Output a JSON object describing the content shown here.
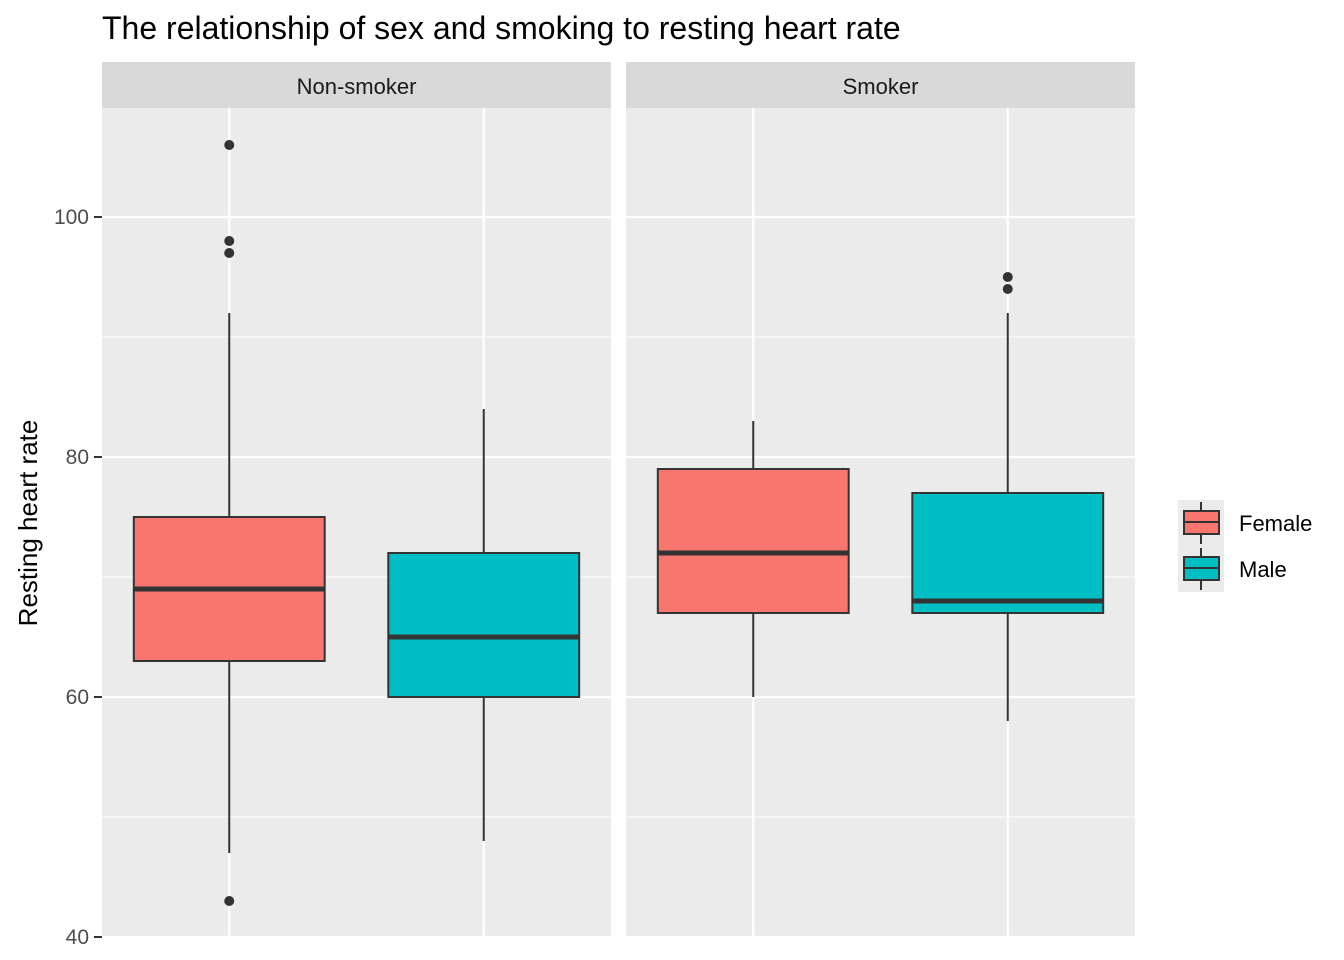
{
  "chart_data": {
    "type": "boxplot",
    "title": "The relationship of sex and smoking to resting heart rate",
    "ylabel": "Resting heart rate",
    "xlabel": "",
    "ylim": [
      40,
      110
    ],
    "y_ticks": [
      40,
      60,
      80,
      100
    ],
    "grid": true,
    "legend_position": "right",
    "panels": [
      {
        "label": "Non-smoker",
        "boxes": [
          {
            "group": "Female",
            "lower_whisker": 47,
            "q1": 63,
            "median": 69,
            "q3": 75,
            "upper_whisker": 92,
            "outliers": [
              106,
              98,
              97,
              43
            ]
          },
          {
            "group": "Male",
            "lower_whisker": 48,
            "q1": 60,
            "median": 65,
            "q3": 72,
            "upper_whisker": 84,
            "outliers": []
          }
        ]
      },
      {
        "label": "Smoker",
        "boxes": [
          {
            "group": "Female",
            "lower_whisker": 60,
            "q1": 67,
            "median": 72,
            "q3": 79,
            "upper_whisker": 83,
            "outliers": []
          },
          {
            "group": "Male",
            "lower_whisker": 58,
            "q1": 67,
            "median": 68,
            "q3": 77,
            "upper_whisker": 92,
            "outliers": [
              95,
              94
            ]
          }
        ]
      }
    ],
    "legend": [
      {
        "name": "Female",
        "color": "#F8766D"
      },
      {
        "name": "Male",
        "color": "#00BFC4"
      }
    ]
  },
  "colors": {
    "panel_background": "#EBEBEB",
    "strip_background": "#D9D9D9",
    "gridline": "#FFFFFF",
    "box_outline": "#333333"
  }
}
